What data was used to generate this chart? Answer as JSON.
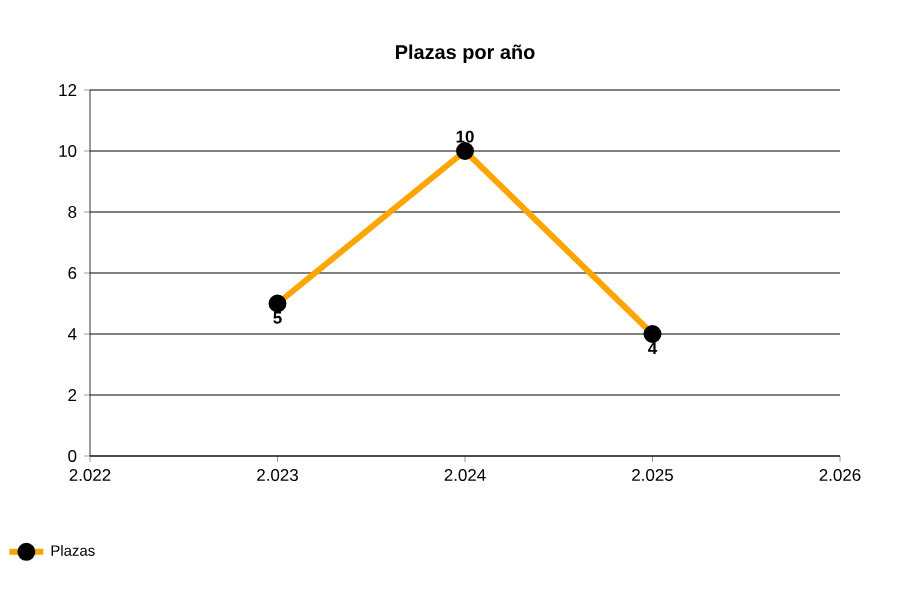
{
  "chart_data": {
    "type": "line",
    "title": "Plazas por año",
    "x": [
      2023,
      2024,
      2025
    ],
    "series": [
      {
        "name": "Plazas",
        "color": "#ffa500",
        "values": [
          5,
          10,
          4
        ]
      }
    ],
    "xlim": [
      2022,
      2026
    ],
    "xticks": [
      {
        "value": 2022,
        "label": "2.022"
      },
      {
        "value": 2023,
        "label": "2.023"
      },
      {
        "value": 2024,
        "label": "2.024"
      },
      {
        "value": 2025,
        "label": "2.025"
      },
      {
        "value": 2026,
        "label": "2.026"
      }
    ],
    "ylim": [
      0,
      12
    ],
    "yticks": [
      0,
      2,
      4,
      6,
      8,
      10,
      12
    ],
    "grid": "y",
    "legend": "bottom left",
    "marker": "circle",
    "line_style": "solid",
    "data_labels": true
  }
}
